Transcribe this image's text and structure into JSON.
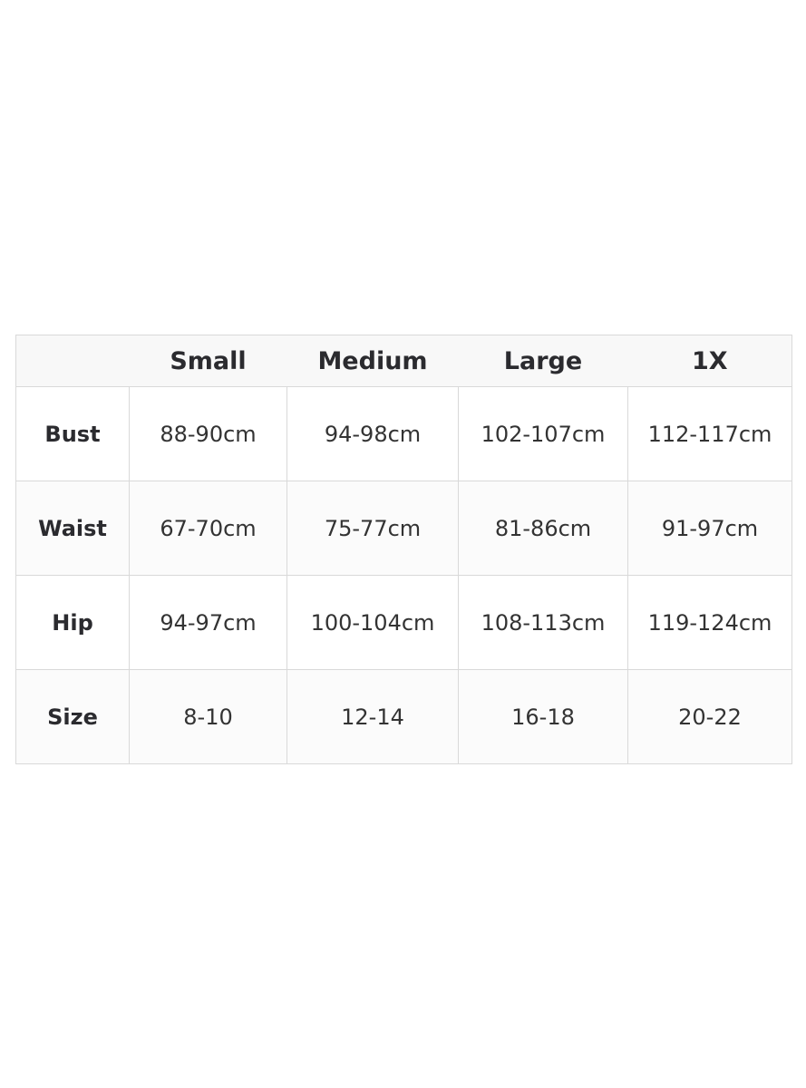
{
  "table": {
    "headers": [
      "",
      "Small",
      "Medium",
      "Large",
      "1X"
    ],
    "rows": [
      {
        "label": "Bust",
        "cells": [
          "88-90cm",
          "94-98cm",
          "102-107cm",
          "112-117cm"
        ]
      },
      {
        "label": "Waist",
        "cells": [
          "67-70cm",
          "75-77cm",
          "81-86cm",
          "91-97cm"
        ]
      },
      {
        "label": "Hip",
        "cells": [
          "94-97cm",
          "100-104cm",
          "108-113cm",
          "119-124cm"
        ]
      },
      {
        "label": "Size",
        "cells": [
          "8-10",
          "12-14",
          "16-18",
          "20-22"
        ]
      }
    ]
  }
}
